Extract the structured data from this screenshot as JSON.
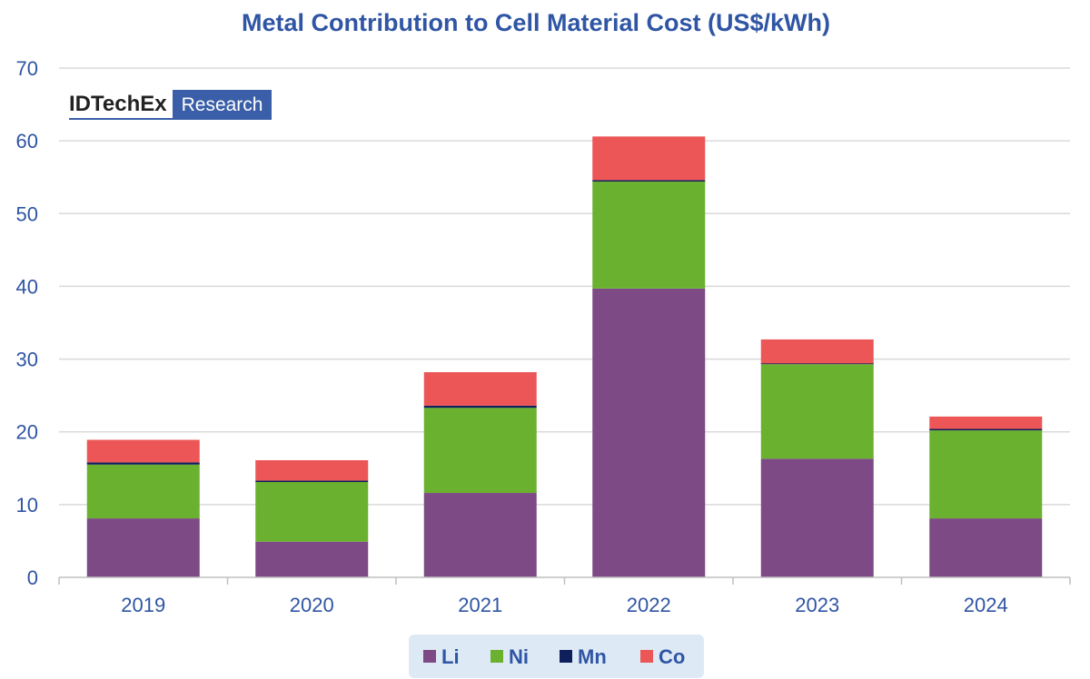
{
  "chart_data": {
    "type": "bar",
    "stacked": true,
    "title": "Metal Contribution to Cell Material Cost (US$/kWh)",
    "xlabel": "",
    "ylabel": "",
    "ylim": [
      0,
      70
    ],
    "yticks": [
      0,
      10,
      20,
      30,
      40,
      50,
      60,
      70
    ],
    "categories": [
      "2019",
      "2020",
      "2021",
      "2022",
      "2023",
      "2024"
    ],
    "series": [
      {
        "name": "Li",
        "color": "#7d4a85",
        "values": [
          8.1,
          4.9,
          11.6,
          39.7,
          16.3,
          8.1
        ]
      },
      {
        "name": "Ni",
        "color": "#6ab12f",
        "values": [
          7.4,
          8.2,
          11.7,
          14.7,
          13.0,
          12.1
        ]
      },
      {
        "name": "Mn",
        "color": "#0f1f5c",
        "values": [
          0.3,
          0.2,
          0.3,
          0.2,
          0.1,
          0.2
        ]
      },
      {
        "name": "Co",
        "color": "#ec5656",
        "values": [
          3.1,
          2.8,
          4.6,
          6.0,
          3.3,
          1.7
        ]
      }
    ],
    "grid": true,
    "legend_position": "bottom"
  },
  "logo": {
    "brand": "IDTechEx",
    "tag": "Research"
  },
  "colors": {
    "text": "#2f55a4",
    "grid": "#d9d9d9",
    "axis": "#bfbfbf",
    "legend_bg": "#dde9f5"
  }
}
